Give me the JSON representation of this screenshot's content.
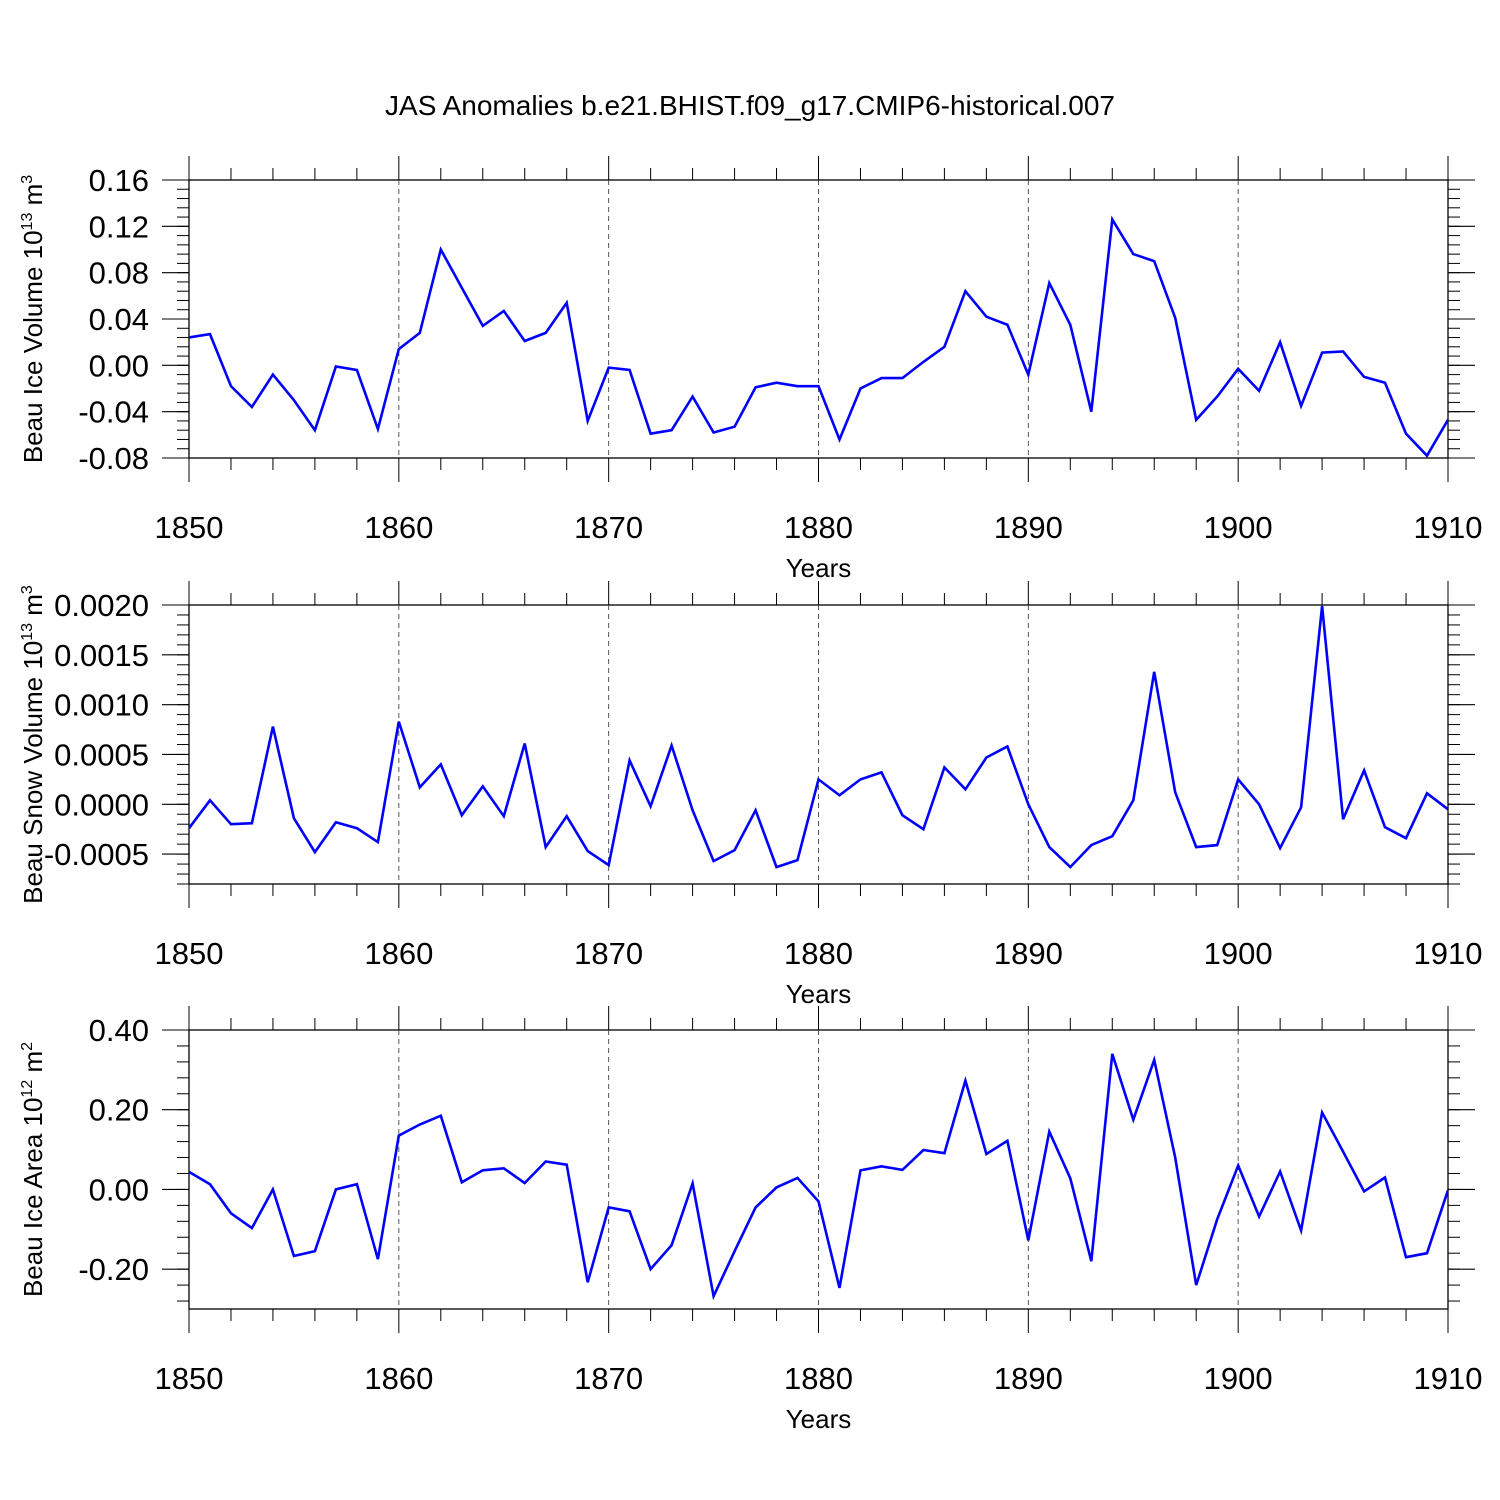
{
  "title": "JAS Anomalies b.e21.BHIST.f09_g17.CMIP6-historical.007",
  "chart_data": [
    {
      "type": "line",
      "ylabel_main": "Beau Ice Volume 10",
      "ylabel_exp": "13",
      "ylabel_unit": " m",
      "ylabel_unit_exp": "3",
      "xlabel": "Years",
      "xlim": [
        1850,
        1910
      ],
      "ylim": [
        -0.08,
        0.16
      ],
      "yticks": [
        -0.08,
        -0.04,
        0.0,
        0.04,
        0.08,
        0.12,
        0.16
      ],
      "ytick_labels": [
        "-0.08",
        "-0.04",
        "0.00",
        "0.04",
        "0.08",
        "0.12",
        "0.16"
      ],
      "xticks": [
        1850,
        1860,
        1870,
        1880,
        1890,
        1900,
        1910
      ],
      "xtick_labels": [
        "1850",
        "1860",
        "1870",
        "1880",
        "1890",
        "1900",
        "1910"
      ],
      "line_color": "#0000ff",
      "x": [
        1850,
        1851,
        1852,
        1853,
        1854,
        1855,
        1856,
        1857,
        1858,
        1859,
        1860,
        1861,
        1862,
        1863,
        1864,
        1865,
        1866,
        1867,
        1868,
        1869,
        1870,
        1871,
        1872,
        1873,
        1874,
        1875,
        1876,
        1877,
        1878,
        1879,
        1880,
        1881,
        1882,
        1883,
        1884,
        1885,
        1886,
        1887,
        1888,
        1889,
        1890,
        1891,
        1892,
        1893,
        1894,
        1895,
        1896,
        1897,
        1898,
        1899,
        1900,
        1901,
        1902,
        1903,
        1904,
        1905,
        1906,
        1907,
        1908,
        1909,
        1910
      ],
      "values": [
        0.024,
        0.027,
        -0.018,
        -0.036,
        -0.008,
        -0.03,
        -0.056,
        -0.001,
        -0.004,
        -0.055,
        0.014,
        0.028,
        0.1,
        0.067,
        0.034,
        0.047,
        0.021,
        0.028,
        0.054,
        -0.048,
        -0.002,
        -0.004,
        -0.059,
        -0.056,
        -0.027,
        -0.058,
        -0.053,
        -0.019,
        -0.015,
        -0.018,
        -0.018,
        -0.064,
        -0.02,
        -0.011,
        -0.011,
        0.003,
        0.016,
        0.064,
        0.042,
        0.035,
        -0.008,
        0.071,
        0.035,
        -0.04,
        0.126,
        0.096,
        0.09,
        0.041,
        -0.047,
        -0.027,
        -0.003,
        -0.022,
        0.02,
        -0.035,
        0.011,
        0.012,
        -0.01,
        -0.015,
        -0.059,
        -0.078,
        -0.047
      ]
    },
    {
      "type": "line",
      "ylabel_main": "Beau Snow Volume 10",
      "ylabel_exp": "13",
      "ylabel_unit": " m",
      "ylabel_unit_exp": "3",
      "xlabel": "Years",
      "xlim": [
        1850,
        1910
      ],
      "ylim": [
        -0.0008,
        0.002
      ],
      "yticks": [
        -0.0005,
        0.0,
        0.0005,
        0.001,
        0.0015,
        0.002
      ],
      "ytick_labels": [
        "-0.0005",
        "0.0000",
        "0.0005",
        "0.0010",
        "0.0015",
        "0.0020"
      ],
      "xticks": [
        1850,
        1860,
        1870,
        1880,
        1890,
        1900,
        1910
      ],
      "xtick_labels": [
        "1850",
        "1860",
        "1870",
        "1880",
        "1890",
        "1900",
        "1910"
      ],
      "line_color": "#0000ff",
      "x": [
        1850,
        1851,
        1852,
        1853,
        1854,
        1855,
        1856,
        1857,
        1858,
        1859,
        1860,
        1861,
        1862,
        1863,
        1864,
        1865,
        1866,
        1867,
        1868,
        1869,
        1870,
        1871,
        1872,
        1873,
        1874,
        1875,
        1876,
        1877,
        1878,
        1879,
        1880,
        1881,
        1882,
        1883,
        1884,
        1885,
        1886,
        1887,
        1888,
        1889,
        1890,
        1891,
        1892,
        1893,
        1894,
        1895,
        1896,
        1897,
        1898,
        1899,
        1900,
        1901,
        1902,
        1903,
        1904,
        1905,
        1906,
        1907,
        1908,
        1909,
        1910
      ],
      "values": [
        -0.00024,
        4e-05,
        -0.0002,
        -0.00019,
        0.00078,
        -0.00014,
        -0.00048,
        -0.00018,
        -0.00024,
        -0.00038,
        0.00083,
        0.00017,
        0.0004,
        -0.00011,
        0.00018,
        -0.00012,
        0.00061,
        -0.00043,
        -0.00012,
        -0.00047,
        -0.00061,
        0.00044,
        -2e-05,
        0.00059,
        -6e-05,
        -0.00057,
        -0.00046,
        -6e-05,
        -0.00063,
        -0.00056,
        0.00025,
        9e-05,
        0.00025,
        0.00032,
        -0.00011,
        -0.00025,
        0.00037,
        0.00015,
        0.00047,
        0.00058,
        0.0,
        -0.00043,
        -0.00063,
        -0.00041,
        -0.00032,
        4e-05,
        0.00133,
        0.00012,
        -0.00043,
        -0.00041,
        0.00025,
        0.0,
        -0.00044,
        -3e-05,
        0.00199,
        -0.00015,
        0.00034,
        -0.00023,
        -0.00034,
        0.00011,
        -5e-05
      ]
    },
    {
      "type": "line",
      "ylabel_main": "Beau Ice Area 10",
      "ylabel_exp": "12",
      "ylabel_unit": " m",
      "ylabel_unit_exp": "2",
      "xlabel": "Years",
      "xlim": [
        1850,
        1910
      ],
      "ylim": [
        -0.3,
        0.4
      ],
      "yticks": [
        -0.2,
        0.0,
        0.2,
        0.4
      ],
      "ytick_labels": [
        "-0.20",
        "0.00",
        "0.20",
        "0.40"
      ],
      "xticks": [
        1850,
        1860,
        1870,
        1880,
        1890,
        1900,
        1910
      ],
      "xtick_labels": [
        "1850",
        "1860",
        "1870",
        "1880",
        "1890",
        "1900",
        "1910"
      ],
      "line_color": "#0000ff",
      "x": [
        1850,
        1851,
        1852,
        1853,
        1854,
        1855,
        1856,
        1857,
        1858,
        1859,
        1860,
        1861,
        1862,
        1863,
        1864,
        1865,
        1866,
        1867,
        1868,
        1869,
        1870,
        1871,
        1872,
        1873,
        1874,
        1875,
        1876,
        1877,
        1878,
        1879,
        1880,
        1881,
        1882,
        1883,
        1884,
        1885,
        1886,
        1887,
        1888,
        1889,
        1890,
        1891,
        1892,
        1893,
        1894,
        1895,
        1896,
        1897,
        1898,
        1899,
        1900,
        1901,
        1902,
        1903,
        1904,
        1905,
        1906,
        1907,
        1908,
        1909,
        1910
      ],
      "values": [
        0.044,
        0.013,
        -0.06,
        -0.097,
        0.0,
        -0.167,
        -0.155,
        0.0,
        0.013,
        -0.175,
        0.135,
        0.163,
        0.185,
        0.018,
        0.048,
        0.053,
        0.016,
        0.07,
        0.062,
        -0.233,
        -0.045,
        -0.055,
        -0.2,
        -0.14,
        0.015,
        -0.268,
        -0.155,
        -0.045,
        0.005,
        0.029,
        -0.03,
        -0.247,
        0.048,
        0.058,
        0.049,
        0.099,
        0.091,
        0.273,
        0.089,
        0.122,
        -0.128,
        0.145,
        0.028,
        -0.18,
        0.34,
        0.175,
        0.325,
        0.08,
        -0.24,
        -0.075,
        0.06,
        -0.068,
        0.045,
        -0.103,
        0.193,
        0.095,
        -0.005,
        0.03,
        -0.17,
        -0.16,
        -0.002
      ]
    }
  ]
}
